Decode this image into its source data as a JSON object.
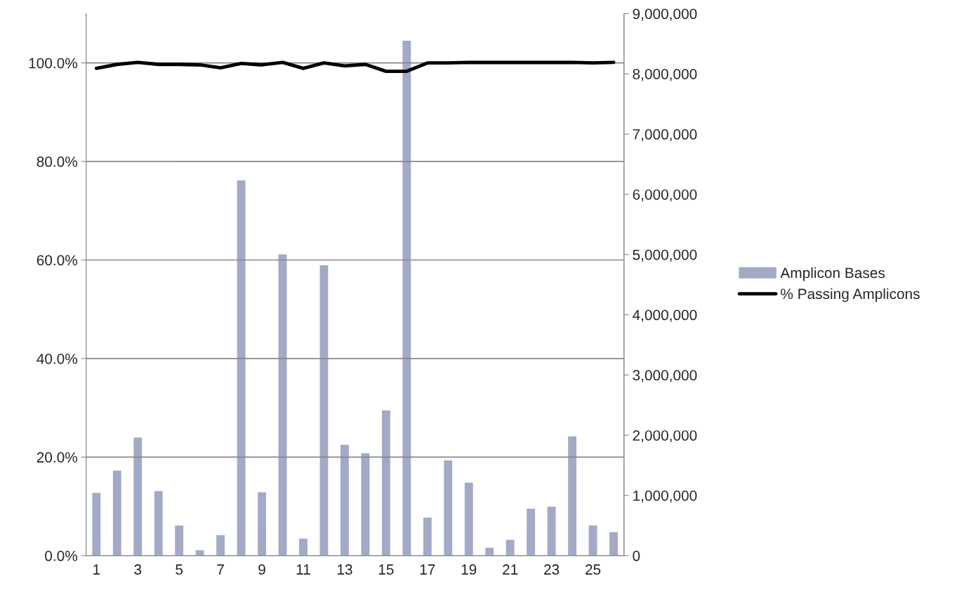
{
  "chart_data": {
    "type": "bar",
    "categories": [
      "1",
      null,
      "3",
      null,
      "5",
      null,
      "7",
      null,
      "9",
      null,
      "11",
      null,
      "13",
      null,
      "15",
      null,
      "17",
      null,
      "19",
      null,
      "21",
      null,
      "23",
      null,
      "25",
      null
    ],
    "series": [
      {
        "name": "Amplicon Bases",
        "axis": "y2",
        "color": "#a2aac6",
        "values": [
          1050000,
          1420000,
          1970000,
          1080000,
          510000,
          100000,
          350000,
          6240000,
          1060000,
          5010000,
          290000,
          4830000,
          1850000,
          1710000,
          2420000,
          8560000,
          640000,
          1590000,
          1220000,
          140000,
          270000,
          790000,
          820000,
          1990000,
          510000,
          400000
        ]
      },
      {
        "name": "% Passing Amplicons",
        "type": "line",
        "color": "#000000",
        "values": [
          98.9,
          99.7,
          100.1,
          99.7,
          99.7,
          99.6,
          99.0,
          99.9,
          99.6,
          100.1,
          98.9,
          100.0,
          99.4,
          99.7,
          98.3,
          98.3,
          100.0,
          100.0,
          100.1,
          100.1,
          100.1,
          100.1,
          100.1,
          100.1,
          100.0,
          100.1
        ]
      }
    ],
    "ylim": [
      0,
      110
    ],
    "yticks": [
      {
        "value": 0,
        "label": "0.0%"
      },
      {
        "value": 20,
        "label": "20.0%"
      },
      {
        "value": 40,
        "label": "40.0%"
      },
      {
        "value": 60,
        "label": "60.0%"
      },
      {
        "value": 80,
        "label": "80.0%"
      },
      {
        "value": 100,
        "label": "100.0%"
      }
    ],
    "y2lim": [
      0,
      9000000
    ],
    "y2ticks": [
      {
        "value": 0,
        "label": "0"
      },
      {
        "value": 1000000,
        "label": "1,000,000"
      },
      {
        "value": 2000000,
        "label": "2,000,000"
      },
      {
        "value": 3000000,
        "label": "3,000,000"
      },
      {
        "value": 4000000,
        "label": "4,000,000"
      },
      {
        "value": 5000000,
        "label": "5,000,000"
      },
      {
        "value": 6000000,
        "label": "6,000,000"
      },
      {
        "value": 7000000,
        "label": "7,000,000"
      },
      {
        "value": 8000000,
        "label": "8,000,000"
      },
      {
        "value": 9000000,
        "label": "9,000,000"
      }
    ],
    "grid": "y",
    "legend": "right",
    "marker": "none",
    "line_style": "solid"
  }
}
